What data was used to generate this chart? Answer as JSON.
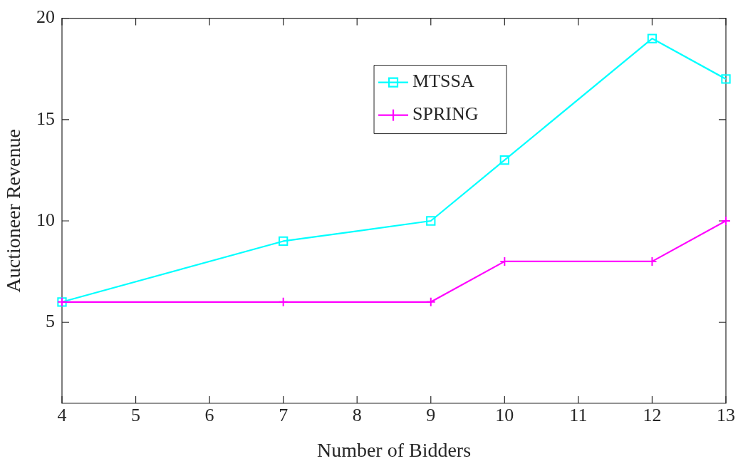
{
  "chart_data": {
    "type": "line",
    "xlabel": "Number of Bidders",
    "ylabel": "Auctioneer Revenue",
    "x": [
      4,
      7,
      9,
      10,
      12,
      13
    ],
    "series": [
      {
        "name": "MTSSA",
        "color": "#00ffff",
        "values": [
          6,
          9,
          10,
          13,
          19,
          17
        ],
        "marker": "square"
      },
      {
        "name": "SPRING",
        "color": "#ff00ff",
        "values": [
          6,
          6,
          6,
          8,
          8,
          10
        ],
        "marker": "cross"
      }
    ],
    "xlim": [
      4,
      13
    ],
    "xticks": [
      4,
      5,
      6,
      7,
      8,
      9,
      10,
      11,
      12,
      13
    ],
    "ylim": [
      1,
      20
    ],
    "yticks": [
      5,
      10,
      15,
      20
    ],
    "grid": false,
    "legend": "top right",
    "line_style": "solid"
  }
}
